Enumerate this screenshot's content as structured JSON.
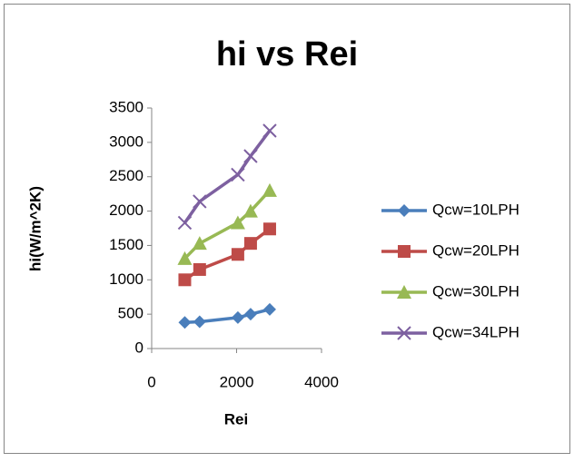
{
  "chart_data": {
    "type": "scatter",
    "title": "hi vs Rei",
    "x_label": "Rei",
    "y_label": "hi(W/m^2K)",
    "xlim": [
      0,
      4000
    ],
    "xticks": [
      0,
      2000,
      4000
    ],
    "ylim": [
      0,
      3500
    ],
    "yticks": [
      0,
      500,
      1000,
      1500,
      2000,
      2500,
      3000,
      3500
    ],
    "legend": "right",
    "series": [
      {
        "name": "Qcw=10LPH",
        "color": "#4a7ebb",
        "marker": "diamond",
        "x": [
          780,
          1130,
          2030,
          2330,
          2780
        ],
        "values": [
          380,
          390,
          450,
          500,
          570
        ]
      },
      {
        "name": "Qcw=20LPH",
        "color": "#be4b48",
        "marker": "square",
        "x": [
          780,
          1130,
          2030,
          2330,
          2780
        ],
        "values": [
          1000,
          1150,
          1370,
          1530,
          1740
        ]
      },
      {
        "name": "Qcw=30LPH",
        "color": "#98b954",
        "marker": "triangle",
        "x": [
          780,
          1130,
          2030,
          2330,
          2780
        ],
        "values": [
          1310,
          1530,
          1830,
          2000,
          2300
        ]
      },
      {
        "name": "Qcw=34LPH",
        "color": "#7d60a0",
        "marker": "x",
        "x": [
          780,
          1130,
          2030,
          2330,
          2780
        ],
        "values": [
          1830,
          2140,
          2530,
          2800,
          3170
        ]
      }
    ]
  }
}
